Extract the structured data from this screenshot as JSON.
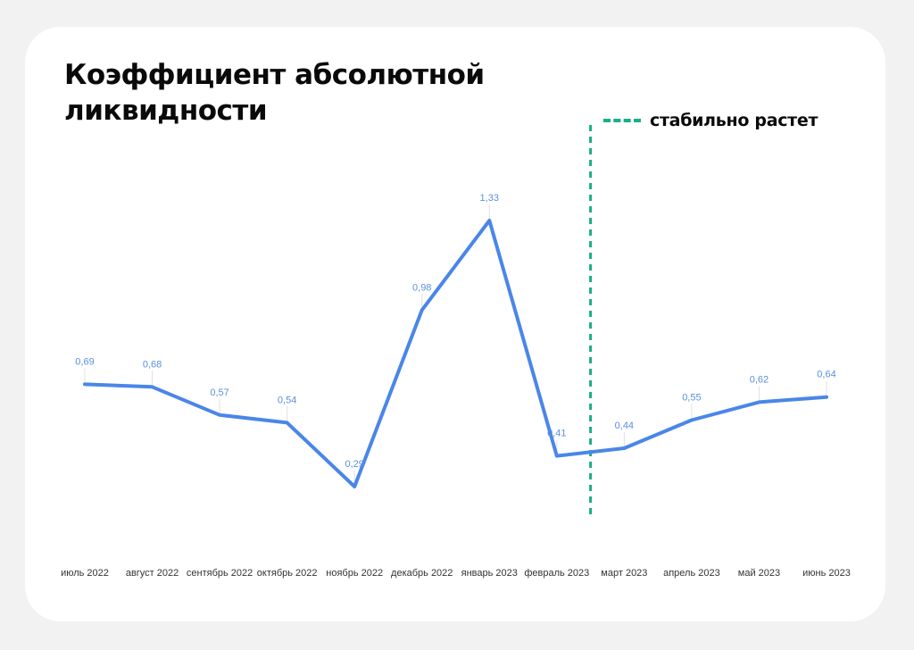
{
  "chart_data": {
    "type": "line",
    "title": "Коэффициент абсолютной ликвидности",
    "categories": [
      "июль 2022",
      "август 2022",
      "сентябрь 2022",
      "октябрь 2022",
      "ноябрь 2022",
      "декабрь 2022",
      "январь 2023",
      "февраль 2023",
      "март 2023",
      "апрель 2023",
      "май 2023",
      "июнь 2023"
    ],
    "series": [
      {
        "values": [
          0.69,
          0.68,
          0.57,
          0.54,
          0.29,
          0.98,
          1.33,
          0.41,
          0.44,
          0.55,
          0.62,
          0.64
        ],
        "labels": [
          "0,69",
          "0,68",
          "0,57",
          "0,54",
          "0,29",
          "0,98",
          "1,33",
          "0,41",
          "0,44",
          "0,55",
          "0,62",
          "0,64"
        ]
      }
    ],
    "xlabel": "",
    "ylabel": "",
    "grid": false,
    "annotation": {
      "type": "vertical-dashed-line",
      "between": [
        "февраль 2023",
        "март 2023"
      ],
      "label": "стабильно растет",
      "color": "#1aae86"
    },
    "line_color": "#4a86e8",
    "label_color": "#5a8fe0"
  }
}
